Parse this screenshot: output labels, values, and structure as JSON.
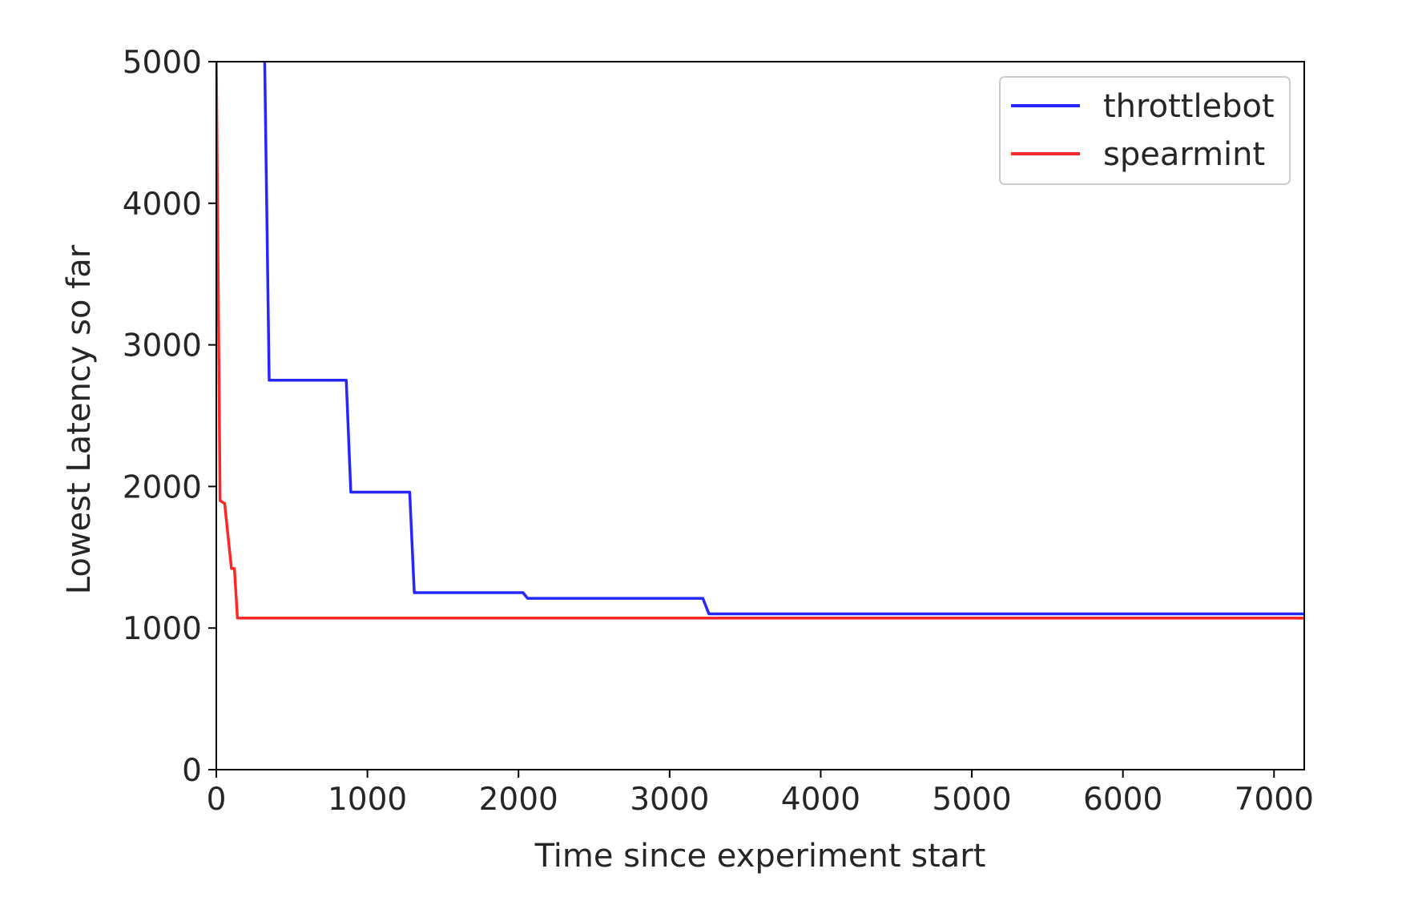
{
  "chart_data": {
    "type": "line",
    "title": "",
    "xlabel": "Time since experiment start",
    "ylabel": "Lowest Latency so far",
    "xlim": [
      0,
      7200
    ],
    "ylim": [
      0,
      5000
    ],
    "xticks": [
      0,
      1000,
      2000,
      3000,
      4000,
      5000,
      6000,
      7000
    ],
    "yticks": [
      0,
      1000,
      2000,
      3000,
      4000,
      5000
    ],
    "xtick_labels": [
      "0",
      "1000",
      "2000",
      "3000",
      "4000",
      "5000",
      "6000",
      "7000"
    ],
    "ytick_labels": [
      "0",
      "1000",
      "2000",
      "3000",
      "4000",
      "5000"
    ],
    "grid": false,
    "legend_position": "top-right",
    "series": [
      {
        "name": "throttlebot",
        "color": "#0000ff",
        "points": [
          [
            320,
            5000
          ],
          [
            350,
            2750
          ],
          [
            860,
            2750
          ],
          [
            890,
            1960
          ],
          [
            1280,
            1960
          ],
          [
            1310,
            1250
          ],
          [
            2030,
            1250
          ],
          [
            2060,
            1210
          ],
          [
            3220,
            1210
          ],
          [
            3260,
            1100
          ],
          [
            7200,
            1100
          ]
        ]
      },
      {
        "name": "spearmint",
        "color": "#ff0000",
        "points": [
          [
            0,
            5000
          ],
          [
            25,
            1900
          ],
          [
            55,
            1880
          ],
          [
            100,
            1420
          ],
          [
            120,
            1420
          ],
          [
            140,
            1070
          ],
          [
            7200,
            1070
          ]
        ]
      }
    ]
  }
}
